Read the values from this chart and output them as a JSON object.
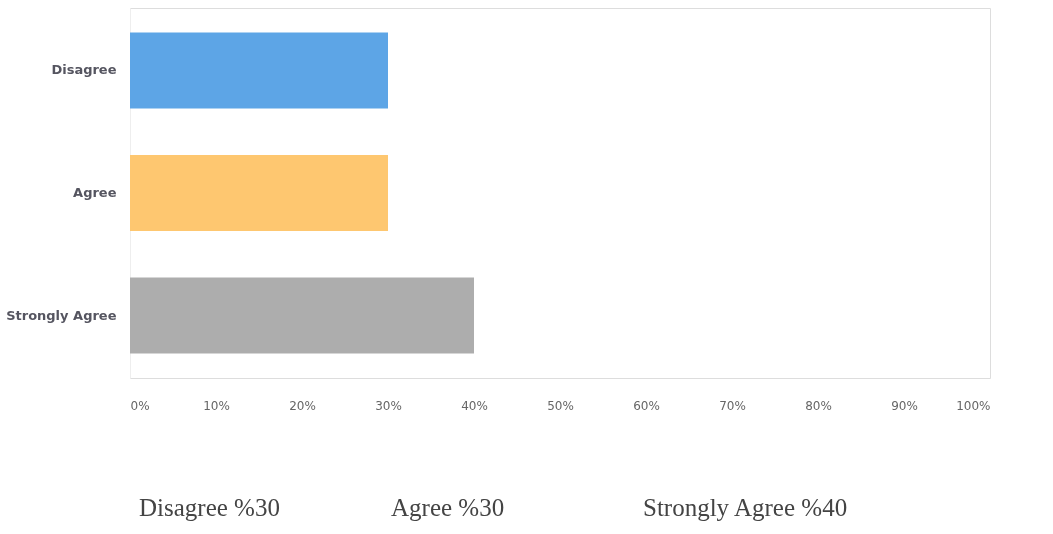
{
  "chart_data": {
    "type": "bar",
    "orientation": "horizontal",
    "categories": [
      "Disagree",
      "Agree",
      "Strongly Agree"
    ],
    "values": [
      30,
      30,
      40
    ],
    "colors": [
      "#5da5e6",
      "#fec770",
      "#adadad"
    ],
    "xlim": [
      0,
      100
    ],
    "xticks": [
      {
        "value": 0,
        "label": "0%"
      },
      {
        "value": 10,
        "label": "10%"
      },
      {
        "value": 20,
        "label": "20%"
      },
      {
        "value": 30,
        "label": "30%"
      },
      {
        "value": 40,
        "label": "40%"
      },
      {
        "value": 50,
        "label": "50%"
      },
      {
        "value": 60,
        "label": "60%"
      },
      {
        "value": 70,
        "label": "70%"
      },
      {
        "value": 80,
        "label": "80%"
      },
      {
        "value": 90,
        "label": "90%"
      },
      {
        "value": 100,
        "label": "100%"
      }
    ],
    "grid": false,
    "legend": false,
    "annotations": [
      "Disagree %30",
      "Agree %30",
      "Strongly Agree %40"
    ]
  }
}
